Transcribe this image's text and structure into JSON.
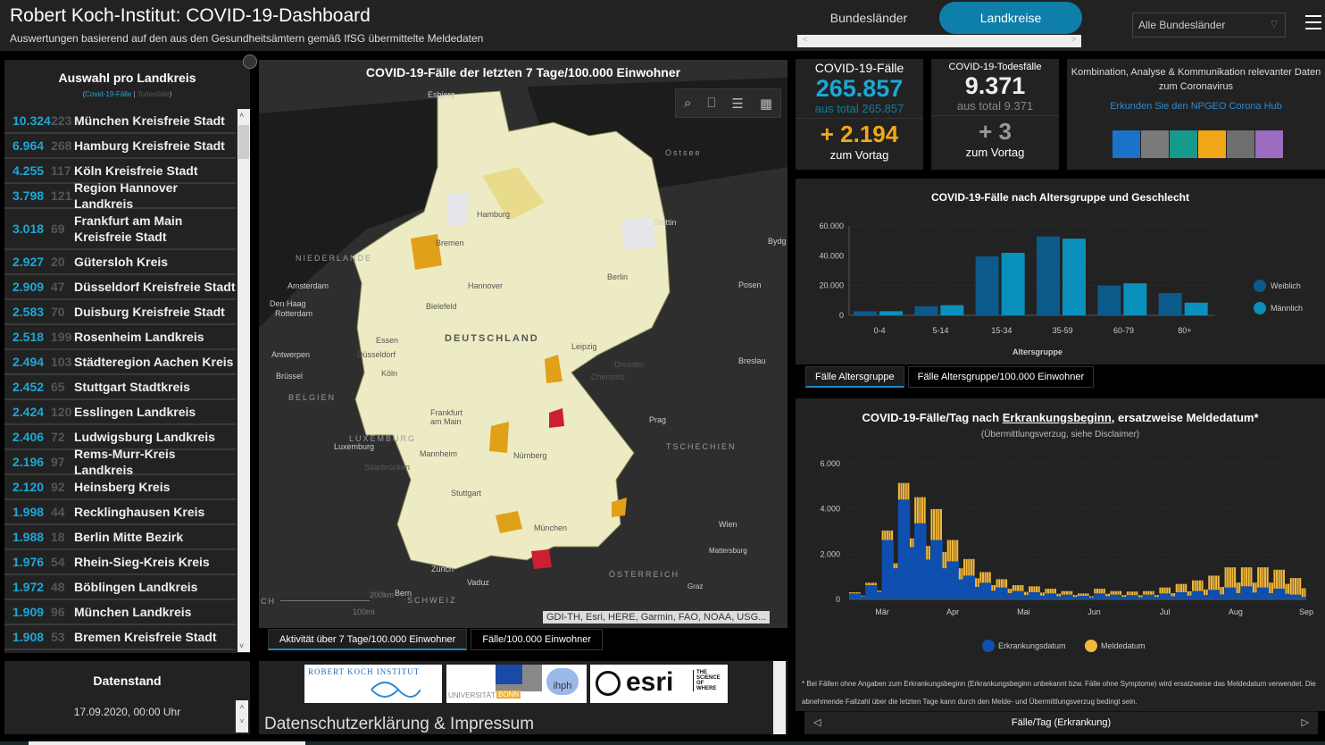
{
  "header": {
    "title": "Robert Koch-Institut: COVID-19-Dashboard",
    "subtitle": "Auswertungen basierend auf den aus den Gesundheitsämtern gemäß IfSG übermittelte Meldedaten",
    "tabs": [
      {
        "label": "Bundesländer",
        "active": false
      },
      {
        "label": "Landkreise",
        "active": true
      }
    ],
    "scroll_left": "<",
    "scroll_right": ">",
    "state_select": "Alle Bundesländer"
  },
  "district_panel": {
    "title": "Auswahl pro Landkreis",
    "legend_open": "(",
    "legend_cases": "Covid-19-Fälle",
    "legend_sep": " | ",
    "legend_deaths": "Todesfälle",
    "legend_close": ")",
    "rows": [
      {
        "cases": "10.324",
        "deaths": "223",
        "name": "München Kreisfreie Stadt"
      },
      {
        "cases": "6.964",
        "deaths": "268",
        "name": "Hamburg Kreisfreie Stadt"
      },
      {
        "cases": "4.255",
        "deaths": "117",
        "name": "Köln Kreisfreie Stadt"
      },
      {
        "cases": "3.798",
        "deaths": "121",
        "name": "Region Hannover Landkreis"
      },
      {
        "cases": "3.018",
        "deaths": "69",
        "name": "Frankfurt am Main Kreisfreie Stadt"
      },
      {
        "cases": "2.927",
        "deaths": "20",
        "name": "Gütersloh Kreis"
      },
      {
        "cases": "2.909",
        "deaths": "47",
        "name": "Düsseldorf Kreisfreie Stadt"
      },
      {
        "cases": "2.583",
        "deaths": "70",
        "name": "Duisburg Kreisfreie Stadt"
      },
      {
        "cases": "2.518",
        "deaths": "199",
        "name": "Rosenheim Landkreis"
      },
      {
        "cases": "2.494",
        "deaths": "103",
        "name": "Städteregion Aachen Kreis"
      },
      {
        "cases": "2.452",
        "deaths": "65",
        "name": "Stuttgart Stadtkreis"
      },
      {
        "cases": "2.424",
        "deaths": "120",
        "name": "Esslingen Landkreis"
      },
      {
        "cases": "2.406",
        "deaths": "72",
        "name": "Ludwigsburg Landkreis"
      },
      {
        "cases": "2.196",
        "deaths": "97",
        "name": "Rems-Murr-Kreis Landkreis"
      },
      {
        "cases": "2.120",
        "deaths": "92",
        "name": "Heinsberg Kreis"
      },
      {
        "cases": "1.998",
        "deaths": "44",
        "name": "Recklinghausen Kreis"
      },
      {
        "cases": "1.988",
        "deaths": "18",
        "name": "Berlin Mitte Bezirk"
      },
      {
        "cases": "1.976",
        "deaths": "54",
        "name": "Rhein-Sieg-Kreis Kreis"
      },
      {
        "cases": "1.972",
        "deaths": "48",
        "name": "Böblingen Landkreis"
      },
      {
        "cases": "1.909",
        "deaths": "96",
        "name": "München Landkreis"
      },
      {
        "cases": "1.908",
        "deaths": "53",
        "name": "Bremen Kreisfreie Stadt"
      }
    ]
  },
  "data_status": {
    "title": "Datenstand",
    "value": "17.09.2020, 00:00 Uhr"
  },
  "map": {
    "title": "COVID-19-Fälle der letzten 7 Tage/100.000 Einwohner",
    "attribution": "GDI-TH, Esri, HERE, Garmin, FAO, NOAA, USG...",
    "scale_km": "200km",
    "scale_mi": "100mi",
    "labels": {
      "esbjerg": "Esbjerg",
      "ostsee": "Ostsee",
      "niederlande": "NIEDERLANDE",
      "amsterdam": "Amsterdam",
      "denhaag": "Den Haag",
      "rotterdam": "Rotterdam",
      "antwerpen": "Antwerpen",
      "bruessel": "Brüssel",
      "belgien": "BELGIEN",
      "luxemburg_c": "LUXEMBURG",
      "luxemburg": "Luxemburg",
      "hamburg": "Hamburg",
      "bremen": "Bremen",
      "hannover": "Hannover",
      "bielefeld": "Bielefeld",
      "berlin": "Berlin",
      "stettin": "Stettin",
      "posen": "Posen",
      "bydg": "Bydg",
      "deutschland": "DEUTSCHLAND",
      "leipzig": "Leipzig",
      "dresden": "Dresden",
      "chemnitz": "Chemnitz",
      "breslau": "Breslau",
      "essen": "Essen",
      "duesseldorf": "Düsseldorf",
      "koeln": "Köln",
      "frankfurt": "Frankfurt am Main",
      "mannheim": "Mannheim",
      "saarbruecken": "Saarbrücken",
      "nuernberg": "Nürnberg",
      "prag": "Prag",
      "tschechien": "TSCHECHIEN",
      "stuttgart": "Stuttgart",
      "muenchen": "München",
      "wien": "Wien",
      "mattersburg": "Mattersburg",
      "zuerich": "Zürich",
      "vaduz": "Vaduz",
      "bern": "Bern",
      "schweiz": "SCHWEIZ",
      "oesterreich": "ÖSTERREICH",
      "graz": "Graz",
      "ch": "CH"
    },
    "tabs": [
      {
        "label": "Aktivität über 7 Tage/100.000 Einwohner",
        "active": true
      },
      {
        "label": "Fälle/100.000 Einwohner",
        "active": false
      }
    ],
    "colors": {
      "low": "#ecebc4",
      "mid": "#e8dc8c",
      "high": "#e0a018",
      "veryhigh": "#cc2030",
      "none": "#e6e6ec"
    }
  },
  "logos": {
    "rki": "ROBERT KOCH INSTITUT",
    "bonn_uni": "UNIVERSITÄT",
    "bonn": "BONN",
    "ihph": "ihph",
    "esri": "esri",
    "esri_tag": "THE SCIENCE OF WHERE",
    "privacy": "Datenschutzerklärung & Impressum"
  },
  "kpi_cases": {
    "label": "COVID-19-Fälle",
    "value": "265.857",
    "total": "aus total 265.857",
    "delta": "+ 2.194",
    "delta_label": "zum Vortag"
  },
  "kpi_deaths": {
    "label": "COVID-19-Todesfälle",
    "value": "9.371",
    "total": "aus total 9.371",
    "delta": "+ 3",
    "delta_label": "zum Vortag"
  },
  "hub": {
    "text1": "Kombination, Analyse & Kommunikation relevanter Daten",
    "text2": "zum Coronavirus",
    "link": "Erkunden Sie den NPGEO Corona Hub",
    "icons": [
      "plant-hand-icon",
      "location-houses-icon",
      "heart-pulse-icon",
      "map-pattern-icon",
      "cars-icon",
      "bell-tower-icon"
    ],
    "icon_colors": [
      "#1a73c8",
      "#7a7a7a",
      "#159a8c",
      "#f0a818",
      "#6e6e6e",
      "#9b6cc0"
    ]
  },
  "age_tabs": [
    {
      "label": "Fälle Altersgruppe",
      "active": true
    },
    {
      "label": "Fälle Altersgruppe/100.000 Einwohner",
      "active": false
    }
  ],
  "epi_nav": {
    "label": "Fälle/Tag (Erkrankung)",
    "prev": "◁",
    "next": "▷"
  },
  "epi_text": {
    "title_a": "COVID-19-Fälle/Tag nach ",
    "title_u": "Erkrankungsbeginn",
    "title_b": ", ersatzweise Meldedatum*",
    "subtitle": "(Übermittlungsverzug, siehe Disclaimer)",
    "disclaimer": "* Bei Fällen ohne Angaben zum Erkrankungsbeginn (Erkrankungsbeginn unbekannt bzw. Fälle ohne Symptome) wird ersatzweise das Meldedatum verwendet. Die abnehmende Fallzahl über die letzten Tage kann durch den Melde- und Übermittlungsverzug bedingt sein."
  },
  "chart_data": [
    {
      "type": "bar",
      "title": "COVID-19-Fälle nach Altersgruppe und Geschlecht",
      "xlabel": "Altersgruppe",
      "ylabel": "",
      "categories": [
        "0-4",
        "5-14",
        "15-34",
        "35-59",
        "60-79",
        "80+"
      ],
      "series": [
        {
          "name": "Weiblich",
          "color": "#0b5a8a",
          "values": [
            2700,
            6100,
            39500,
            53000,
            20000,
            15000
          ]
        },
        {
          "name": "Männlich",
          "color": "#0a90bc",
          "values": [
            2800,
            6800,
            42000,
            51500,
            21500,
            8500
          ]
        }
      ],
      "ylim": [
        0,
        60000
      ],
      "yticks": [
        "0",
        "20.000",
        "40.000",
        "60.000"
      ],
      "ytick_values": [
        0,
        20000,
        40000,
        60000
      ],
      "legend": "right",
      "grid": true
    },
    {
      "type": "bar",
      "stacked": true,
      "title": "COVID-19-Fälle/Tag nach Erkrankungsbeginn, ersatzweise Meldedatum*",
      "subtitle": "(Übermittlungsverzug, siehe Disclaimer)",
      "xlabel": "",
      "ylabel": "",
      "xticks": [
        "Mär",
        "Apr",
        "Mai",
        "Jun",
        "Jul",
        "Aug",
        "Sep"
      ],
      "ylim": [
        0,
        6000
      ],
      "yticks": [
        "0",
        "2.000",
        "4.000",
        "6.000"
      ],
      "ytick_values": [
        0,
        2000,
        4000,
        6000
      ],
      "legend": "bottom",
      "series": [
        {
          "name": "Erkrankungsdatum",
          "color": "#0e4fb0",
          "weekly_avg": [
            250,
            600,
            2500,
            4200,
            3200,
            2500,
            1600,
            1000,
            700,
            500,
            350,
            300,
            250,
            200,
            150,
            250,
            200,
            180,
            200,
            250,
            300,
            350,
            400,
            500,
            550,
            500,
            450,
            200
          ]
        },
        {
          "name": "Meldedatum",
          "color": "#f2b83a",
          "weekly_avg": [
            50,
            100,
            400,
            700,
            1100,
            1300,
            900,
            700,
            450,
            350,
            250,
            250,
            200,
            150,
            100,
            200,
            150,
            150,
            150,
            250,
            350,
            450,
            600,
            850,
            800,
            850,
            800,
            700
          ]
        }
      ]
    }
  ]
}
